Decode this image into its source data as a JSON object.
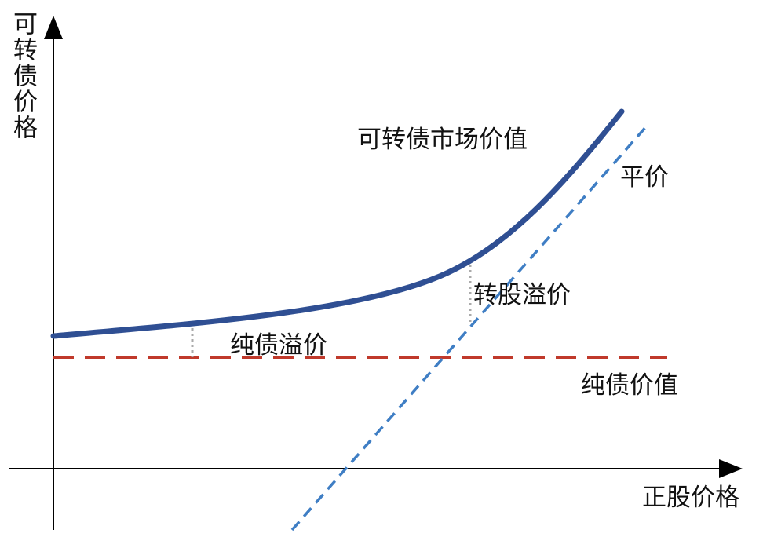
{
  "axes": {
    "y_label": "可转债价格",
    "x_label": "正股价格"
  },
  "curves": {
    "market_value": "可转债市场价值",
    "parity": "平价",
    "bond_floor": "纯债价值"
  },
  "annotations": {
    "conversion_premium": "转股溢价",
    "bond_premium": "纯债溢价"
  }
}
